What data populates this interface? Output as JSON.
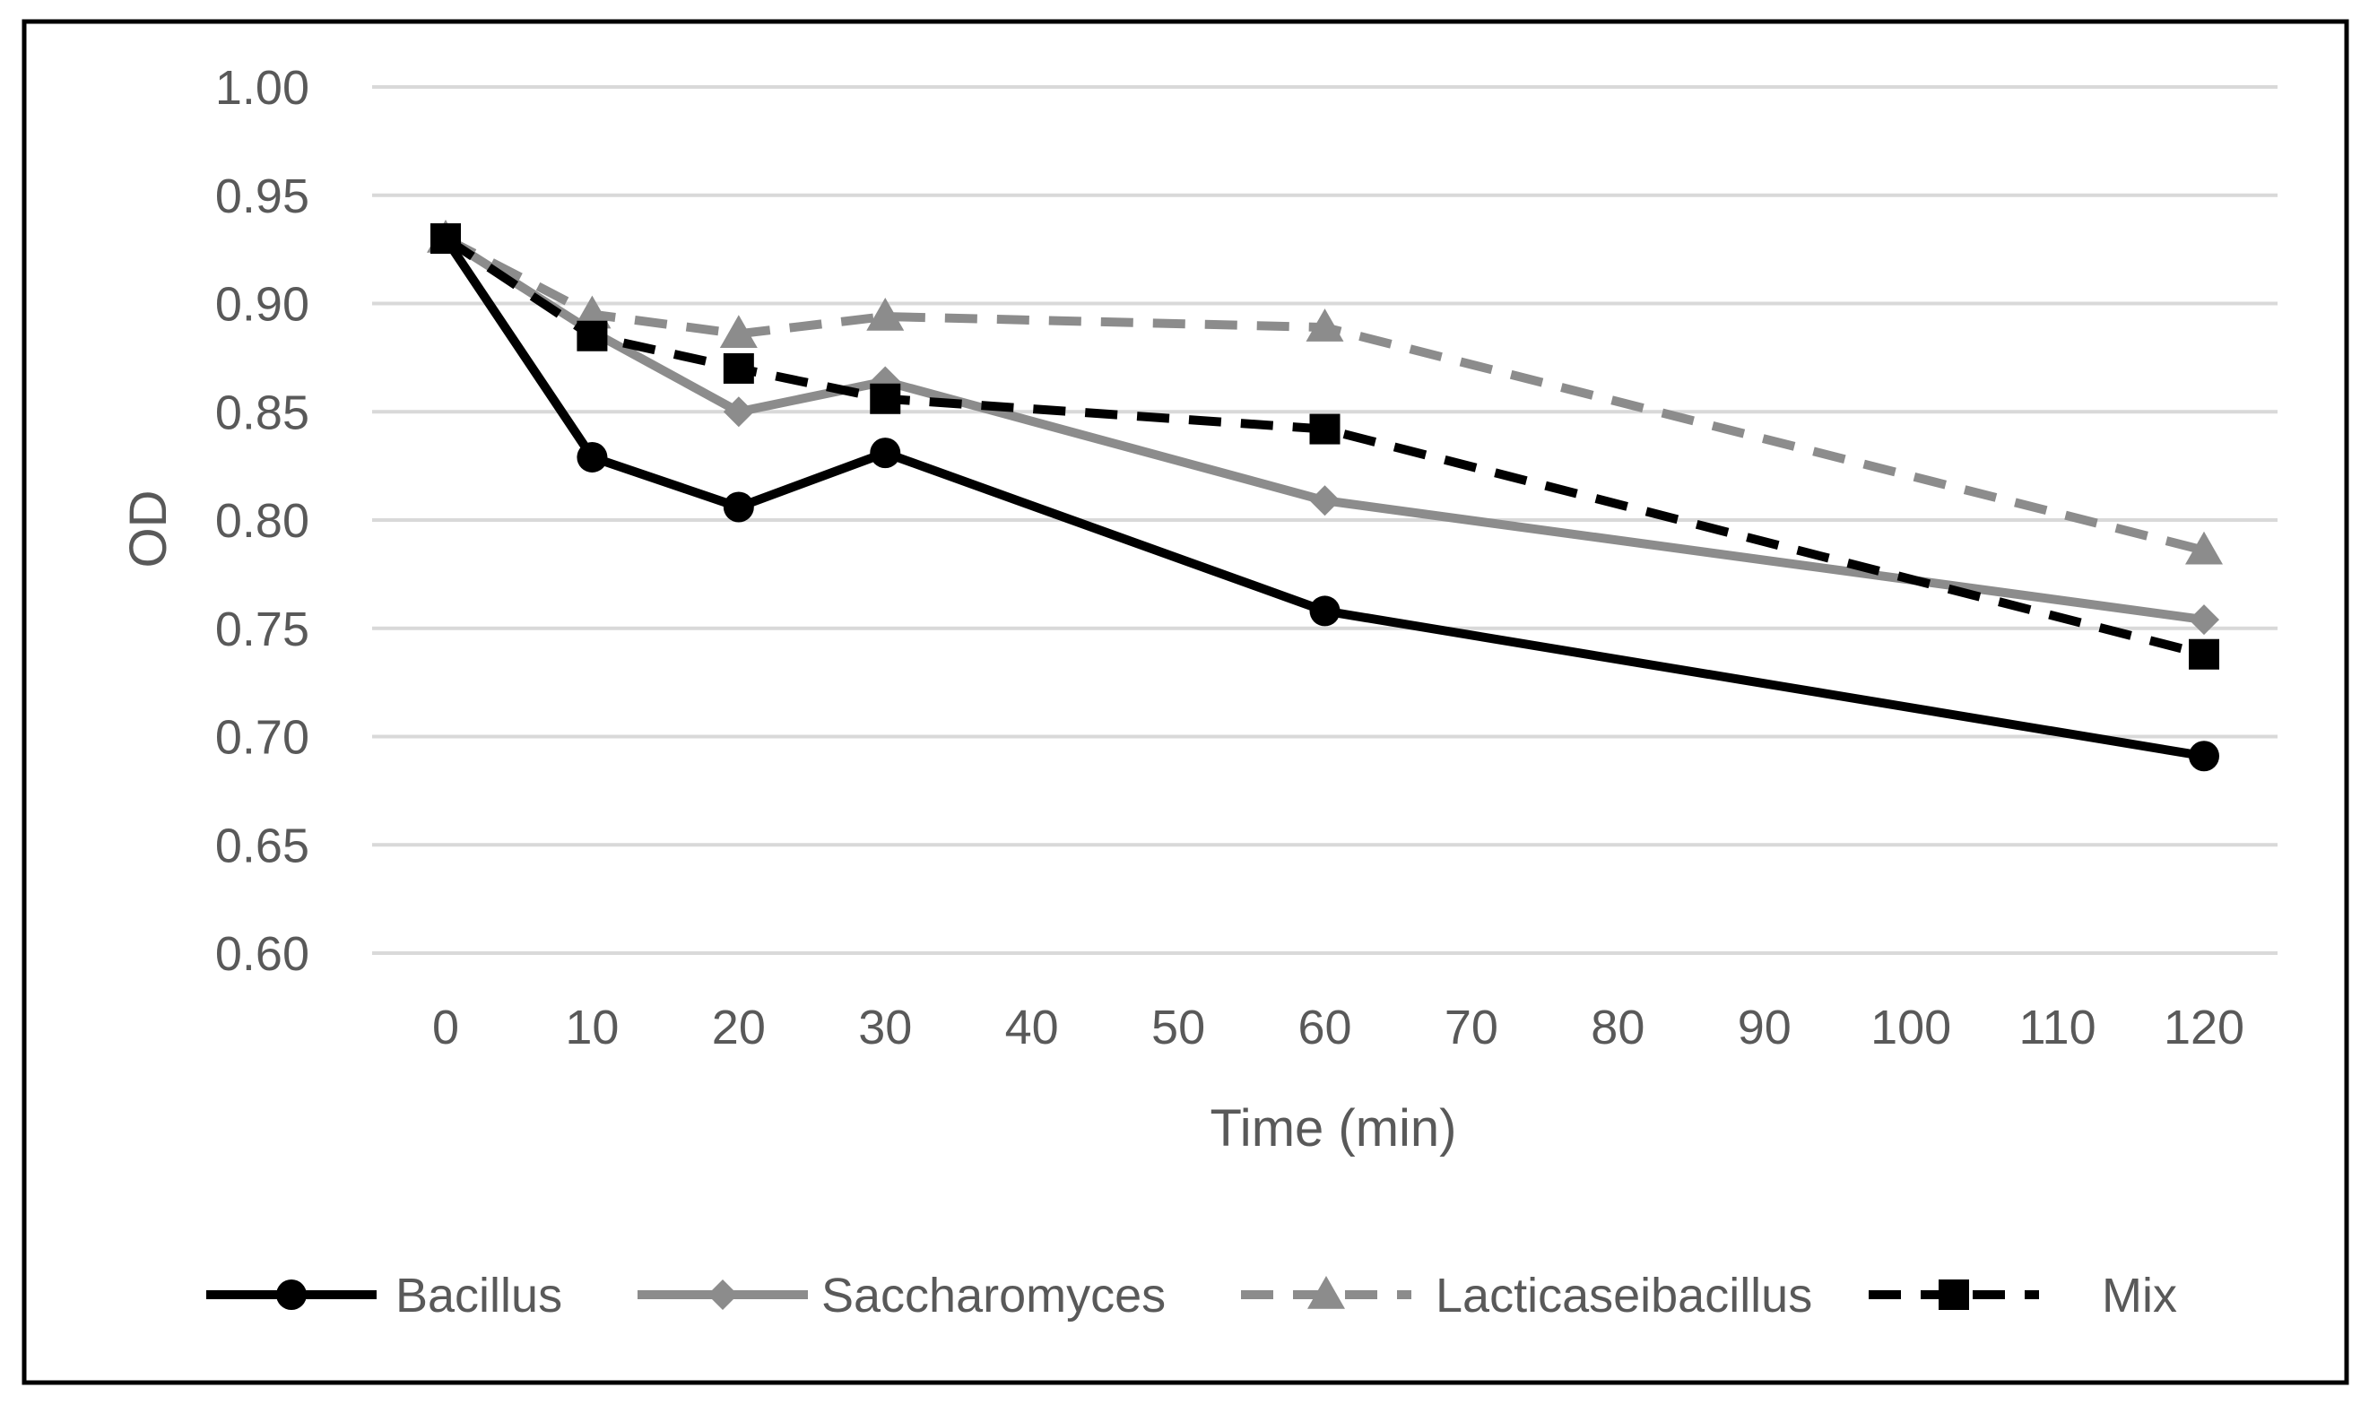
{
  "chart_data": {
    "type": "line",
    "title": "",
    "xlabel": "Time (min)",
    "ylabel": "OD",
    "xlim": [
      0,
      120
    ],
    "ylim": [
      0.6,
      1.0
    ],
    "x_ticks": [
      "0",
      "10",
      "20",
      "30",
      "40",
      "50",
      "60",
      "70",
      "80",
      "90",
      "100",
      "110",
      "120"
    ],
    "y_ticks": [
      "0.60",
      "0.65",
      "0.70",
      "0.75",
      "0.80",
      "0.85",
      "0.90",
      "0.95",
      "1.00"
    ],
    "grid": true,
    "legend_position": "bottom",
    "x": [
      0,
      10,
      20,
      30,
      60,
      120
    ],
    "series": [
      {
        "name": "Bacillus",
        "values": [
          0.93,
          0.829,
          0.806,
          0.831,
          0.758,
          0.691
        ],
        "color": "#000000",
        "dashed": false,
        "marker": "circle"
      },
      {
        "name": "Saccharomyces",
        "values": [
          0.93,
          0.887,
          0.85,
          0.864,
          0.809,
          0.754
        ],
        "color": "#8c8c8c",
        "dashed": false,
        "marker": "diamond"
      },
      {
        "name": "Lacticaseibacillus",
        "values": [
          0.93,
          0.895,
          0.886,
          0.894,
          0.889,
          0.786
        ],
        "color": "#8c8c8c",
        "dashed": true,
        "marker": "triangle"
      },
      {
        "name": "Mix",
        "values": [
          0.93,
          0.885,
          0.87,
          0.856,
          0.842,
          0.738
        ],
        "color": "#000000",
        "dashed": true,
        "marker": "square"
      }
    ]
  }
}
